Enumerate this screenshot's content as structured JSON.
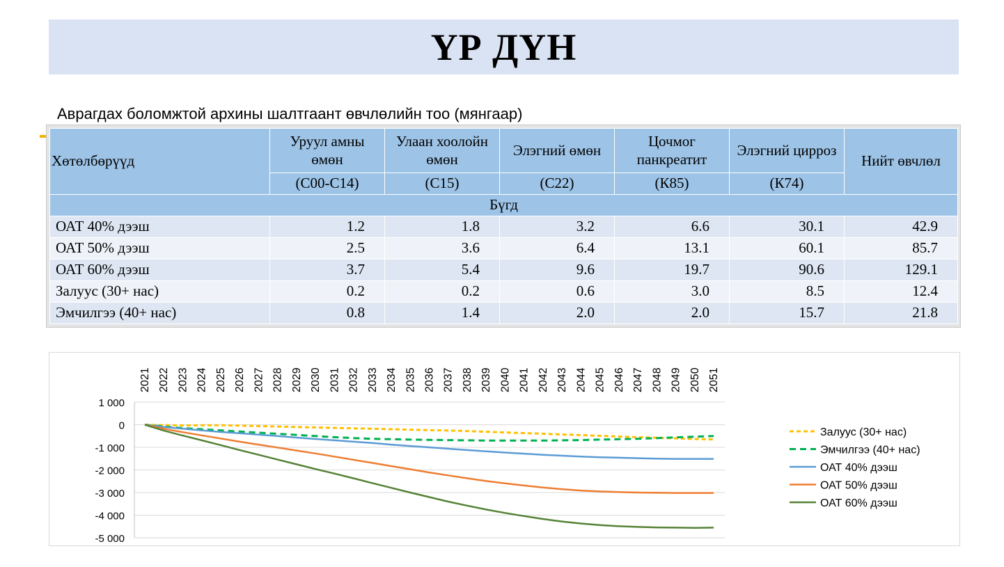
{
  "title": "ҮР ДҮН",
  "caption": "Аврагдах боломжтой архины шалтгаант өвчлөлийн тоо (мянгаар)",
  "table": {
    "programs_header": "Хөтөлбөрүүд",
    "columns": [
      {
        "name": "Уруул амны өмөн",
        "code": "(С00-С14)"
      },
      {
        "name": "Улаан хоолойн өмөн",
        "code": "(С15)"
      },
      {
        "name": "Элэгний өмөн",
        "code": "(С22)"
      },
      {
        "name": "Цочмог панкреатит",
        "code": "(К85)"
      },
      {
        "name": "Элэгний цирроз",
        "code": "(К74)"
      }
    ],
    "total_header": "Нийт өвчлөл",
    "group_label": "Бүгд",
    "rows": [
      {
        "label": "ОАТ 40% дээш",
        "values": [
          "1.2",
          "1.8",
          "3.2",
          "6.6",
          "30.1",
          "42.9"
        ]
      },
      {
        "label": "ОАТ 50% дээш",
        "values": [
          "2.5",
          "3.6",
          "6.4",
          "13.1",
          "60.1",
          "85.7"
        ]
      },
      {
        "label": "ОАТ 60% дээш",
        "values": [
          "3.7",
          "5.4",
          "9.6",
          "19.7",
          "90.6",
          "129.1"
        ]
      },
      {
        "label": "Залуус (30+ нас)",
        "values": [
          "0.2",
          "0.2",
          "0.6",
          "3.0",
          "8.5",
          "12.4"
        ]
      },
      {
        "label": "Эмчилгээ (40+ нас)",
        "values": [
          "0.8",
          "1.4",
          "2.0",
          "2.0",
          "15.7",
          "21.8"
        ]
      }
    ]
  },
  "chart_data": {
    "type": "line",
    "x": [
      "2021",
      "2022",
      "2023",
      "2024",
      "2025",
      "2026",
      "2027",
      "2028",
      "2029",
      "2030",
      "2031",
      "2032",
      "2033",
      "2034",
      "2035",
      "2036",
      "2037",
      "2038",
      "2039",
      "2040",
      "2041",
      "2042",
      "2043",
      "2044",
      "2045",
      "2046",
      "2047",
      "2048",
      "2049",
      "2050",
      "2051"
    ],
    "ylim": [
      -5000,
      1000
    ],
    "yticks": [
      1000,
      0,
      -1000,
      -2000,
      -3000,
      -4000,
      -5000
    ],
    "ytick_labels": [
      "1 000",
      "0",
      "-1 000",
      "-2 000",
      "-3 000",
      "-4 000",
      "-5 000"
    ],
    "x_axis_position": "top",
    "grid": true,
    "legend_position": "right",
    "series": [
      {
        "name": "Залуус  (30+ нас)",
        "color": "#ffc000",
        "dash": "dashed",
        "values": [
          0,
          -20,
          -30,
          -20,
          -20,
          -40,
          -60,
          -80,
          -100,
          -120,
          -140,
          -160,
          -180,
          -200,
          -220,
          -240,
          -260,
          -280,
          -310,
          -340,
          -370,
          -400,
          -430,
          -460,
          -490,
          -520,
          -550,
          -580,
          -600,
          -630,
          -650
        ]
      },
      {
        "name": "Эмчилгээ (40+ нас)",
        "color": "#00b050",
        "dash": "dashed",
        "values": [
          0,
          -80,
          -150,
          -200,
          -250,
          -300,
          -350,
          -400,
          -450,
          -500,
          -550,
          -590,
          -620,
          -640,
          -660,
          -670,
          -680,
          -690,
          -700,
          -700,
          -700,
          -700,
          -690,
          -680,
          -660,
          -640,
          -620,
          -590,
          -560,
          -530,
          -500
        ]
      },
      {
        "name": "ОАТ 40% дээш",
        "color": "#5b9bd5",
        "dash": "solid",
        "values": [
          0,
          -100,
          -180,
          -250,
          -320,
          -380,
          -440,
          -500,
          -570,
          -630,
          -690,
          -750,
          -810,
          -880,
          -940,
          -1000,
          -1060,
          -1120,
          -1180,
          -1230,
          -1280,
          -1330,
          -1370,
          -1410,
          -1440,
          -1460,
          -1480,
          -1500,
          -1510,
          -1510,
          -1510
        ]
      },
      {
        "name": "ОАТ 50% дээш",
        "color": "#ed7d31",
        "dash": "solid",
        "values": [
          0,
          -180,
          -330,
          -470,
          -610,
          -750,
          -880,
          -1010,
          -1140,
          -1270,
          -1410,
          -1550,
          -1690,
          -1830,
          -1970,
          -2110,
          -2240,
          -2370,
          -2490,
          -2590,
          -2690,
          -2780,
          -2850,
          -2910,
          -2950,
          -2980,
          -3000,
          -3010,
          -3020,
          -3020,
          -3020
        ]
      },
      {
        "name": "ОАТ 60% дээш",
        "color": "#548235",
        "dash": "solid",
        "values": [
          0,
          -260,
          -480,
          -690,
          -900,
          -1120,
          -1330,
          -1540,
          -1750,
          -1960,
          -2160,
          -2370,
          -2580,
          -2790,
          -3000,
          -3200,
          -3400,
          -3580,
          -3750,
          -3900,
          -4040,
          -4170,
          -4280,
          -4370,
          -4440,
          -4490,
          -4520,
          -4540,
          -4550,
          -4560,
          -4550
        ]
      }
    ]
  }
}
